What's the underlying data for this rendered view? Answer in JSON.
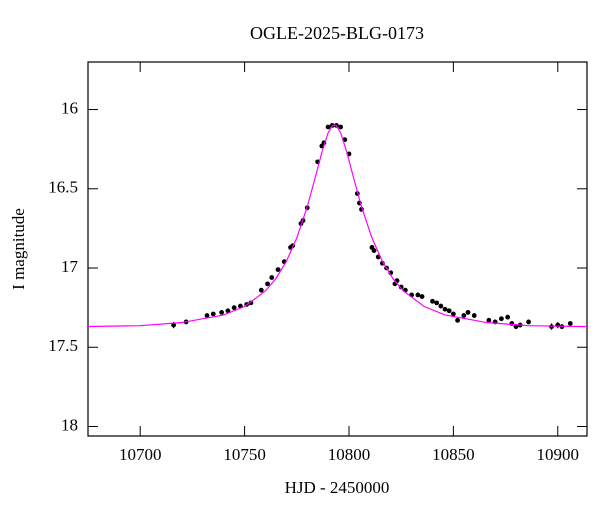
{
  "chart_data": {
    "type": "scatter",
    "title": "OGLE-2025-BLG-0173",
    "x_label": "HJD - 2450000",
    "y_label": "I magnitude",
    "xlim": [
      10675,
      10914
    ],
    "ylim": [
      15.7,
      18.06
    ],
    "y_inverted": true,
    "xticks": [
      10700,
      10750,
      10800,
      10850,
      10900
    ],
    "yticks": [
      16,
      16.5,
      17,
      17.5,
      18
    ],
    "series": [
      {
        "mode": "markers",
        "color": "#000000",
        "x": [
          10716,
          10722,
          10732,
          10735,
          10739,
          10742,
          10745,
          10748,
          10751,
          10753,
          10758,
          10761,
          10763,
          10766,
          10769,
          10772,
          10773,
          10777,
          10778,
          10780,
          10785,
          10787,
          10788,
          10790,
          10792,
          10794,
          10796,
          10798,
          10800,
          10804,
          10805,
          10806,
          10811,
          10812,
          10814,
          10816,
          10818,
          10820,
          10822,
          10823,
          10825,
          10827,
          10830,
          10833,
          10835,
          10840,
          10842,
          10844,
          10846,
          10848,
          10850,
          10852,
          10855,
          10857,
          10860,
          10867,
          10870,
          10873,
          10876,
          10878,
          10880,
          10882,
          10886,
          10897,
          10900,
          10902,
          10906
        ],
        "values": [
          17.36,
          17.34,
          17.3,
          17.29,
          17.28,
          17.27,
          17.25,
          17.24,
          17.23,
          17.22,
          17.14,
          17.1,
          17.06,
          17.01,
          16.96,
          16.87,
          16.86,
          16.72,
          16.7,
          16.62,
          16.33,
          16.23,
          16.21,
          16.11,
          16.1,
          16.1,
          16.11,
          16.19,
          16.28,
          16.53,
          16.59,
          16.63,
          16.87,
          16.89,
          16.93,
          16.97,
          17.0,
          17.03,
          17.1,
          17.08,
          17.12,
          17.14,
          17.17,
          17.17,
          17.18,
          17.21,
          17.22,
          17.24,
          17.26,
          17.27,
          17.29,
          17.33,
          17.3,
          17.28,
          17.3,
          17.33,
          17.34,
          17.32,
          17.31,
          17.35,
          17.37,
          17.36,
          17.34,
          17.37,
          17.36,
          17.37,
          17.35
        ],
        "errors": [
          0.02,
          0.015,
          0.012,
          0.012,
          0.012,
          0.012,
          0.012,
          0.012,
          0.012,
          0.012,
          0.012,
          0.012,
          0.012,
          0.012,
          0.012,
          0.012,
          0.012,
          0.012,
          0.012,
          0.012,
          0.01,
          0.01,
          0.01,
          0.01,
          0.01,
          0.01,
          0.01,
          0.01,
          0.01,
          0.01,
          0.01,
          0.01,
          0.01,
          0.01,
          0.01,
          0.01,
          0.01,
          0.01,
          0.01,
          0.01,
          0.012,
          0.012,
          0.012,
          0.012,
          0.012,
          0.012,
          0.012,
          0.012,
          0.012,
          0.012,
          0.015,
          0.015,
          0.015,
          0.015,
          0.015,
          0.015,
          0.015,
          0.015,
          0.015,
          0.015,
          0.015,
          0.015,
          0.015,
          0.02,
          0.02,
          0.015,
          0.015
        ]
      },
      {
        "mode": "line",
        "color": "#ff00ff",
        "x": [
          10675,
          10700,
          10720,
          10740,
          10750,
          10760,
          10765,
          10770,
          10775,
          10780,
          10784,
          10787,
          10790,
          10792,
          10793,
          10794,
          10796,
          10799,
          10802,
          10806,
          10811,
          10816,
          10821,
          10826,
          10836,
          10846,
          10866,
          10886,
          10911,
          10914
        ],
        "values": [
          17.369,
          17.364,
          17.344,
          17.296,
          17.243,
          17.144,
          17.066,
          16.958,
          16.81,
          16.614,
          16.421,
          16.271,
          16.147,
          16.103,
          16.097,
          16.103,
          16.147,
          16.271,
          16.421,
          16.614,
          16.81,
          16.958,
          17.066,
          17.144,
          17.243,
          17.296,
          17.344,
          17.364,
          17.369,
          17.369
        ]
      }
    ]
  }
}
